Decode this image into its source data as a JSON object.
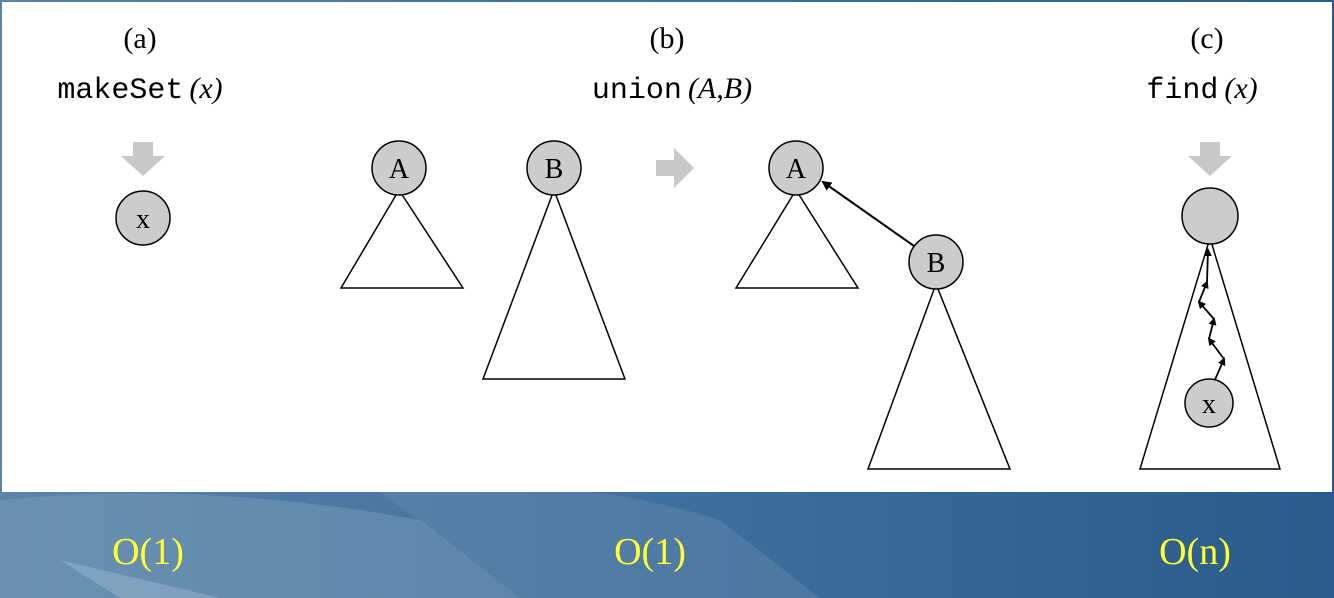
{
  "panels": [
    {
      "label": "(a)",
      "op": "makeSet",
      "args": "(x)",
      "complexity": "O(1)"
    },
    {
      "label": "(b)",
      "op": "union",
      "args": "(A,B)",
      "complexity": "O(1)"
    },
    {
      "label": "(c)",
      "op": "find",
      "args": "(x)",
      "complexity": "O(n)"
    }
  ],
  "nodes": {
    "a_x": "x",
    "b_a1": "A",
    "b_b1": "B",
    "b_a2": "A",
    "b_b2": "B",
    "c_x": "x"
  },
  "colors": {
    "slide_background": "#2d5f8f",
    "panel_background": "#ffffff",
    "node_fill": "#cccccc",
    "arrow_gray": "#c8c8c8",
    "complexity_text": "#ffff33"
  }
}
